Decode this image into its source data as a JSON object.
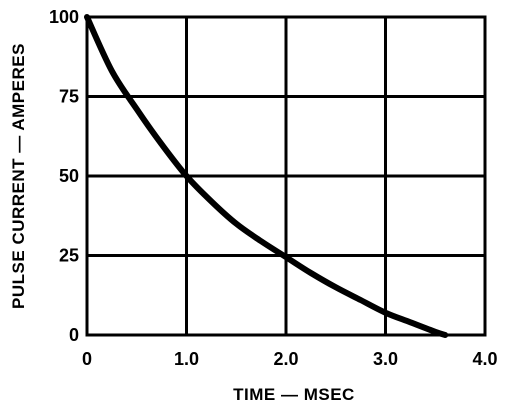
{
  "chart_data": {
    "type": "line",
    "title": "",
    "xlabel": "TIME — MSEC",
    "ylabel": "PULSE CURRENT — AMPERES",
    "xlim": [
      0,
      4.0
    ],
    "ylim": [
      0,
      100
    ],
    "grid": true,
    "x_ticks": [
      "0",
      "1.0",
      "2.0",
      "3.0",
      "4.0"
    ],
    "y_ticks": [
      "0",
      "25",
      "50",
      "75",
      "100"
    ],
    "series": [
      {
        "x": [
          0,
          0.25,
          0.5,
          0.75,
          1.0,
          1.25,
          1.5,
          1.75,
          2.0,
          2.25,
          2.5,
          2.75,
          3.0,
          3.25,
          3.5,
          3.6
        ],
        "y": [
          100,
          83,
          71,
          60,
          50,
          42,
          35,
          29.5,
          24.5,
          19.5,
          15,
          11,
          7,
          4,
          1,
          0
        ]
      }
    ]
  }
}
